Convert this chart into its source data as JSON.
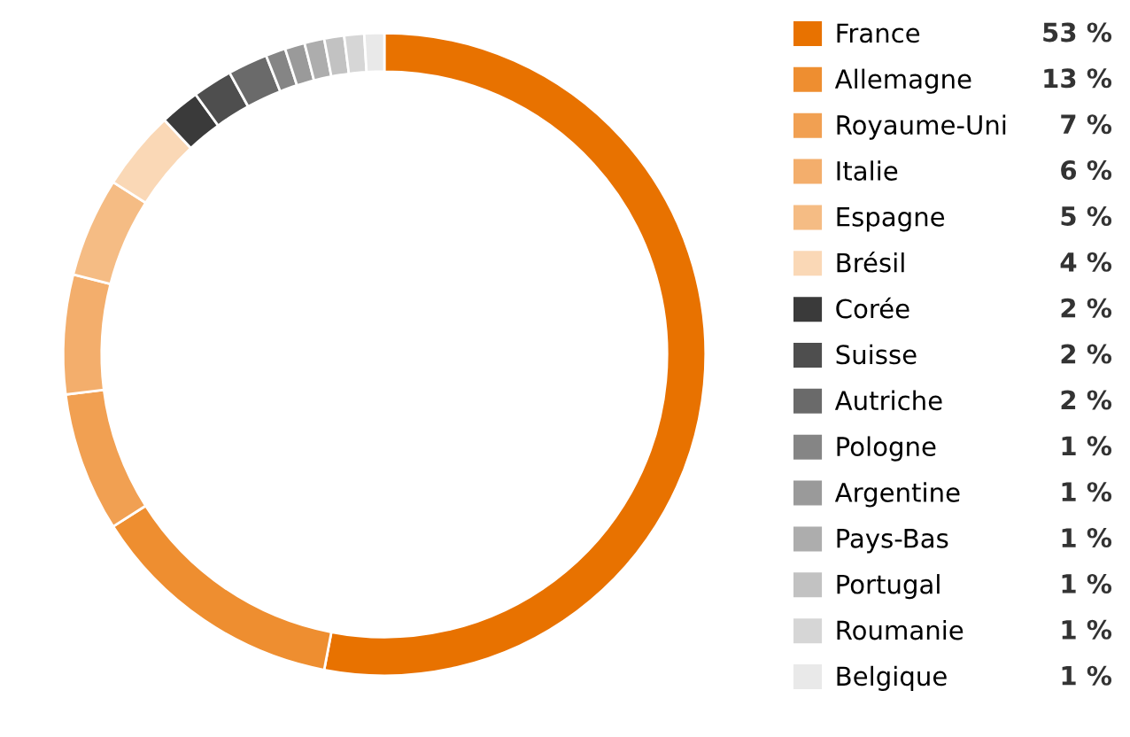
{
  "chart_data": {
    "type": "donut",
    "categories": [
      "France",
      "Allemagne",
      "Royaume-Uni",
      "Italie",
      "Espagne",
      "Brésil",
      "Corée",
      "Suisse",
      "Autriche",
      "Pologne",
      "Argentine",
      "Pays-Bas",
      "Portugal",
      "Roumanie",
      "Belgique"
    ],
    "values": [
      53,
      13,
      7,
      6,
      5,
      4,
      2,
      2,
      2,
      1,
      1,
      1,
      1,
      1,
      1
    ],
    "colors": [
      "#e87200",
      "#ee8e30",
      "#f1a052",
      "#f3ae6c",
      "#f5bc84",
      "#fad8b6",
      "#3a3a3a",
      "#4e4e4e",
      "#6a6a6a",
      "#858585",
      "#9a9a9a",
      "#adadad",
      "#c2c2c2",
      "#d6d6d6",
      "#e9e9e9"
    ],
    "value_labels": [
      "53 %",
      "13 %",
      "7 %",
      "6 %",
      "5 %",
      "4 %",
      "2 %",
      "2 %",
      "2 %",
      "1 %",
      "1 %",
      "1 %",
      "1 %",
      "1 %",
      "1 %"
    ],
    "legend": "right"
  }
}
